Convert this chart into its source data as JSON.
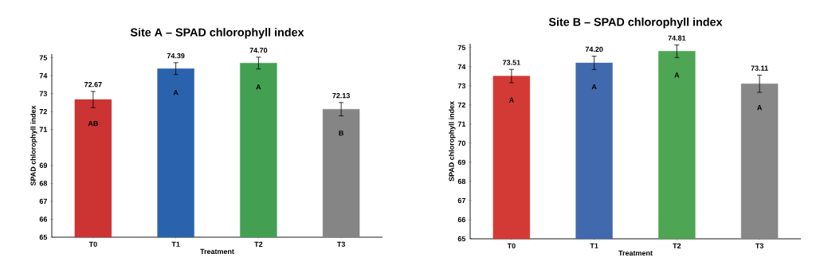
{
  "chart_data": [
    {
      "type": "bar",
      "title": "Site A – SPAD chlorophyll index",
      "xlabel": "Treatment",
      "ylabel": "SPAD chlorophyll index",
      "categories": [
        "T0",
        "T1",
        "T2",
        "T3"
      ],
      "values": [
        72.67,
        74.39,
        74.7,
        72.13
      ],
      "value_labels": [
        "72.67",
        "74.39",
        "74.70",
        "72.13"
      ],
      "errors": [
        0.45,
        0.33,
        0.33,
        0.37
      ],
      "colors": [
        "#cc3333",
        "#2a62ad",
        "#43a052",
        "#858585"
      ],
      "ylim": [
        65,
        75.2
      ],
      "yticks": [
        65,
        66,
        67,
        68,
        69,
        71,
        72,
        73,
        74,
        75
      ],
      "annotations": [
        "AB",
        "A",
        "A",
        "B"
      ]
    },
    {
      "type": "bar",
      "title": "Site B – SPAD chlorophyll index",
      "xlabel": "Treatment",
      "ylabel": "SPAD chlorophyll index",
      "categories": [
        "T0",
        "T1",
        "T2",
        "T3"
      ],
      "values": [
        73.51,
        74.2,
        74.81,
        73.11
      ],
      "value_labels": [
        "73.51",
        "74.20",
        "74.81",
        "73.11"
      ],
      "errors": [
        0.35,
        0.35,
        0.33,
        0.45
      ],
      "colors": [
        "#d43a35",
        "#4169ad",
        "#4ea553",
        "#878787"
      ],
      "ylim": [
        65,
        75.2
      ],
      "yticks": [
        65,
        66,
        67,
        68,
        69,
        70,
        71,
        72,
        73,
        74,
        75
      ],
      "annotations": [
        "A",
        "A",
        "A",
        "A"
      ]
    }
  ]
}
